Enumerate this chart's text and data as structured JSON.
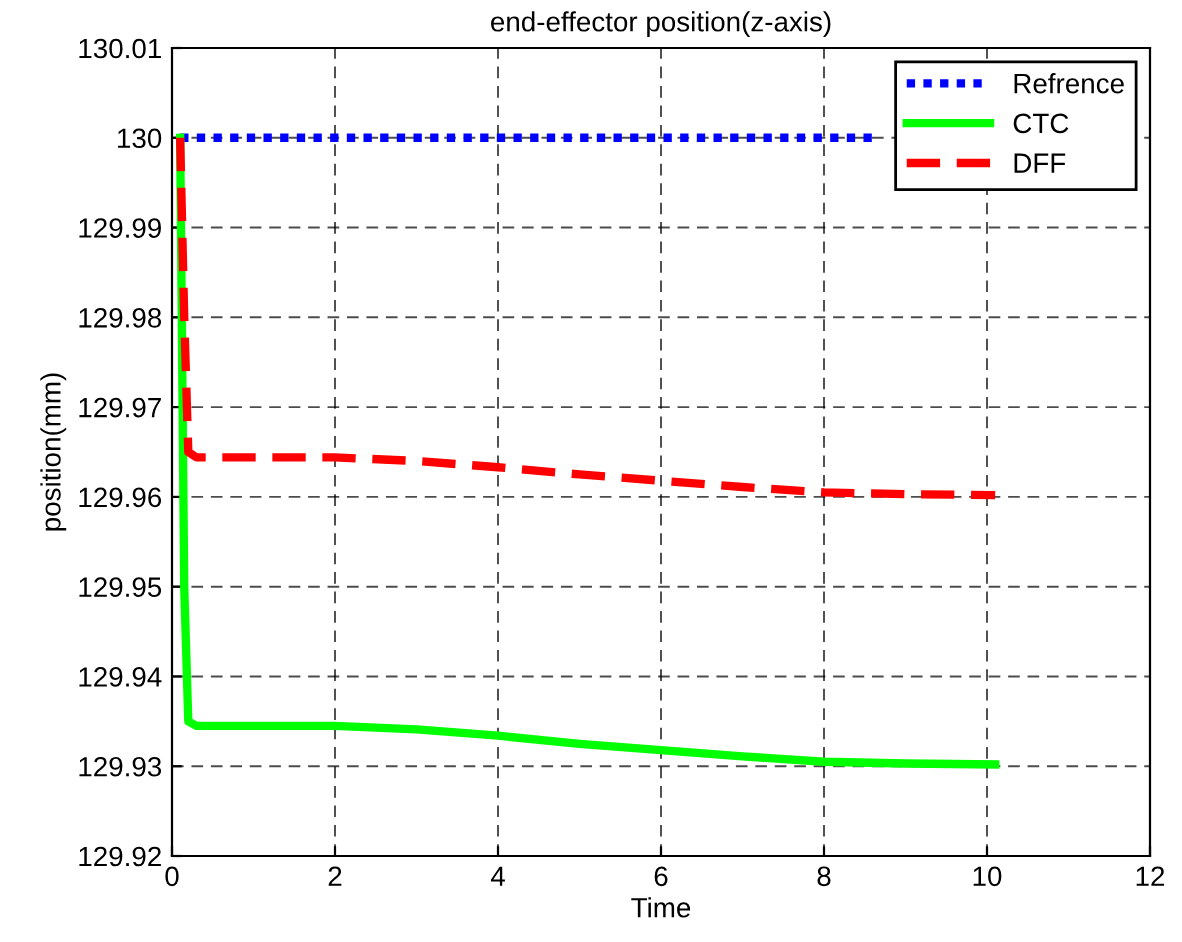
{
  "chart_data": {
    "type": "line",
    "title": "end-effector position(z-axis)",
    "xlabel": "Time",
    "ylabel": "position(mm)",
    "xlim": [
      0,
      12
    ],
    "xticks": [
      0,
      2,
      4,
      6,
      8,
      10,
      12
    ],
    "ylim": [
      129.92,
      130.01
    ],
    "yticks": [
      129.92,
      129.93,
      129.94,
      129.95,
      129.96,
      129.97,
      129.98,
      129.99,
      {
        "value": 130,
        "label": "130"
      },
      130.01
    ],
    "grid": true,
    "legend": "top right",
    "series": [
      {
        "name": "Refrence",
        "color": "#0000ff",
        "line_style": "dotted",
        "x": [
          0.1,
          8.6
        ],
        "values": [
          130,
          130
        ]
      },
      {
        "name": "CTC",
        "color": "#00ff00",
        "line_style": "solid",
        "x": [
          0.1,
          0.15,
          0.2,
          0.3,
          1,
          2,
          3,
          4,
          5,
          6,
          7,
          8,
          9,
          10.1
        ],
        "values": [
          130,
          129.95,
          129.935,
          129.9345,
          129.9345,
          129.9345,
          129.9341,
          129.9334,
          129.9325,
          129.9318,
          129.9311,
          129.9305,
          129.9303,
          129.9302
        ]
      },
      {
        "name": "DFF",
        "color": "#ff0000",
        "line_style": "dashed",
        "x": [
          0.1,
          0.15,
          0.2,
          0.3,
          1,
          2,
          3,
          4,
          5,
          6,
          7,
          8,
          9,
          10.1
        ],
        "values": [
          130,
          129.98,
          129.965,
          129.9644,
          129.9644,
          129.9644,
          129.964,
          129.9633,
          129.9625,
          129.9618,
          129.9611,
          129.9605,
          129.9603,
          129.9602
        ]
      }
    ]
  }
}
